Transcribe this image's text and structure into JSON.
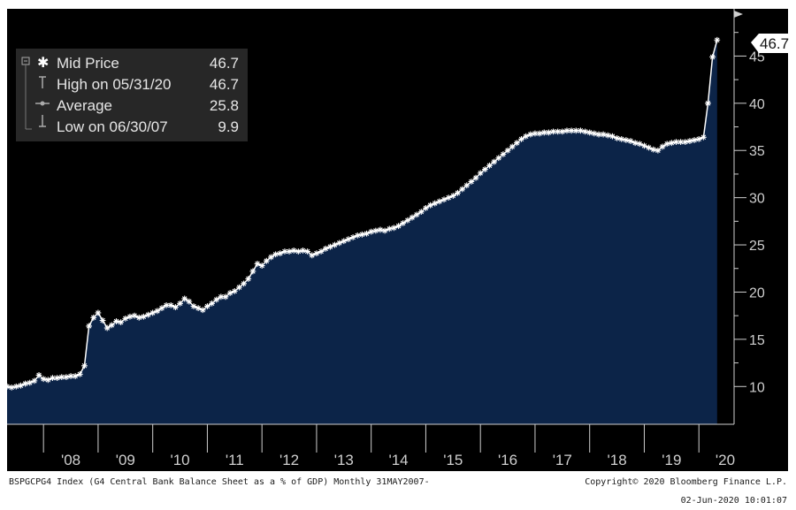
{
  "legend": {
    "rows": [
      {
        "label": "Mid Price",
        "value": "46.7"
      },
      {
        "label": "High on 05/31/20",
        "value": "46.7"
      },
      {
        "label": "Average",
        "value": "25.8"
      },
      {
        "label": "Low on 06/30/07",
        "value": "9.9"
      }
    ]
  },
  "last_value_badge": "46.7",
  "footer": {
    "left": "BSPGCPG4 Index (G4 Central Bank Balance Sheet as a % of GDP) Monthly 31MAY2007-",
    "right_line1": "Copyright© 2020 Bloomberg Finance L.P.",
    "right_line2": "02-Jun-2020 10:01:07"
  },
  "colors": {
    "background": "#000000",
    "area_fill": "#0c2448",
    "line": "#ffffff",
    "legend_box": "#2a2a2a",
    "badge": "#ffffff"
  },
  "chart_data": {
    "type": "area",
    "title": "",
    "xlabel": "",
    "ylabel": "",
    "ylim": [
      6,
      50
    ],
    "yticks": [
      10,
      15,
      20,
      25,
      30,
      35,
      40,
      45
    ],
    "ytick_labels": [
      "10",
      "15",
      "20",
      "25",
      "30",
      "35",
      "40",
      "45"
    ],
    "xtick_labels": [
      "'08",
      "'09",
      "'10",
      "'11",
      "'12",
      "'13",
      "'14",
      "'15",
      "'16",
      "'17",
      "'18",
      "'19",
      "'20"
    ],
    "grid": false,
    "legend_position": "top-left",
    "series": [
      {
        "name": "Mid Price",
        "x": [
          "2007-05",
          "2007-06",
          "2007-07",
          "2007-08",
          "2007-09",
          "2007-10",
          "2007-11",
          "2007-12",
          "2008-01",
          "2008-02",
          "2008-03",
          "2008-04",
          "2008-05",
          "2008-06",
          "2008-07",
          "2008-08",
          "2008-09",
          "2008-10",
          "2008-11",
          "2008-12",
          "2009-01",
          "2009-02",
          "2009-03",
          "2009-04",
          "2009-05",
          "2009-06",
          "2009-07",
          "2009-08",
          "2009-09",
          "2009-10",
          "2009-11",
          "2009-12",
          "2010-01",
          "2010-02",
          "2010-03",
          "2010-04",
          "2010-05",
          "2010-06",
          "2010-07",
          "2010-08",
          "2010-09",
          "2010-10",
          "2010-11",
          "2010-12",
          "2011-01",
          "2011-02",
          "2011-03",
          "2011-04",
          "2011-05",
          "2011-06",
          "2011-07",
          "2011-08",
          "2011-09",
          "2011-10",
          "2011-11",
          "2011-12",
          "2012-01",
          "2012-02",
          "2012-03",
          "2012-04",
          "2012-05",
          "2012-06",
          "2012-07",
          "2012-08",
          "2012-09",
          "2012-10",
          "2012-11",
          "2012-12",
          "2013-01",
          "2013-02",
          "2013-03",
          "2013-04",
          "2013-05",
          "2013-06",
          "2013-07",
          "2013-08",
          "2013-09",
          "2013-10",
          "2013-11",
          "2013-12",
          "2014-01",
          "2014-02",
          "2014-03",
          "2014-04",
          "2014-05",
          "2014-06",
          "2014-07",
          "2014-08",
          "2014-09",
          "2014-10",
          "2014-11",
          "2014-12",
          "2015-01",
          "2015-02",
          "2015-03",
          "2015-04",
          "2015-05",
          "2015-06",
          "2015-07",
          "2015-08",
          "2015-09",
          "2015-10",
          "2015-11",
          "2015-12",
          "2016-01",
          "2016-02",
          "2016-03",
          "2016-04",
          "2016-05",
          "2016-06",
          "2016-07",
          "2016-08",
          "2016-09",
          "2016-10",
          "2016-11",
          "2016-12",
          "2017-01",
          "2017-02",
          "2017-03",
          "2017-04",
          "2017-05",
          "2017-06",
          "2017-07",
          "2017-08",
          "2017-09",
          "2017-10",
          "2017-11",
          "2017-12",
          "2018-01",
          "2018-02",
          "2018-03",
          "2018-04",
          "2018-05",
          "2018-06",
          "2018-07",
          "2018-08",
          "2018-09",
          "2018-10",
          "2018-11",
          "2018-12",
          "2019-01",
          "2019-02",
          "2019-03",
          "2019-04",
          "2019-05",
          "2019-06",
          "2019-07",
          "2019-08",
          "2019-09",
          "2019-10",
          "2019-11",
          "2019-12",
          "2020-01",
          "2020-02",
          "2020-03",
          "2020-04",
          "2020-05"
        ],
        "values": [
          10.0,
          9.9,
          10.0,
          10.1,
          10.3,
          10.4,
          10.6,
          11.2,
          10.8,
          10.7,
          10.9,
          10.9,
          11.0,
          11.0,
          11.1,
          11.1,
          11.3,
          12.2,
          16.4,
          17.3,
          17.8,
          17.0,
          16.2,
          16.5,
          16.9,
          16.8,
          17.2,
          17.4,
          17.5,
          17.3,
          17.4,
          17.6,
          17.8,
          18.0,
          18.3,
          18.6,
          18.6,
          18.4,
          18.8,
          19.3,
          19.0,
          18.5,
          18.3,
          18.1,
          18.5,
          18.8,
          19.2,
          19.5,
          19.5,
          19.9,
          20.1,
          20.5,
          20.9,
          21.4,
          22.2,
          23.0,
          22.8,
          23.3,
          23.7,
          24.0,
          24.1,
          24.3,
          24.3,
          24.4,
          24.3,
          24.4,
          24.3,
          23.9,
          24.1,
          24.3,
          24.6,
          24.8,
          25.0,
          25.2,
          25.4,
          25.6,
          25.8,
          26.0,
          26.1,
          26.2,
          26.4,
          26.5,
          26.6,
          26.5,
          26.7,
          26.8,
          27.0,
          27.3,
          27.6,
          27.9,
          28.2,
          28.5,
          28.9,
          29.2,
          29.4,
          29.6,
          29.8,
          30.0,
          30.2,
          30.5,
          30.9,
          31.3,
          31.7,
          32.1,
          32.6,
          33.0,
          33.4,
          33.8,
          34.2,
          34.6,
          35.0,
          35.4,
          35.8,
          36.2,
          36.5,
          36.7,
          36.8,
          36.8,
          36.9,
          36.9,
          37.0,
          37.0,
          37.0,
          37.1,
          37.1,
          37.1,
          37.1,
          37.0,
          36.9,
          36.8,
          36.7,
          36.7,
          36.6,
          36.5,
          36.3,
          36.2,
          36.1,
          36.0,
          35.8,
          35.7,
          35.5,
          35.3,
          35.1,
          35.0,
          35.4,
          35.7,
          35.8,
          35.9,
          35.9,
          35.9,
          36.0,
          36.1,
          36.2,
          36.4,
          40.0,
          44.9,
          46.7
        ]
      }
    ]
  }
}
